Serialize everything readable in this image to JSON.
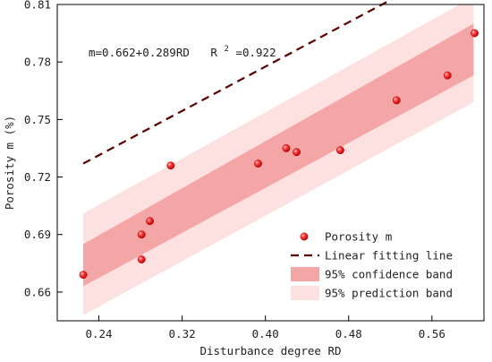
{
  "chart_data": {
    "type": "scatter",
    "title": "",
    "xlabel": "Disturbance degree RD",
    "ylabel": "Porosity m (%)",
    "xlim": [
      0.2,
      0.61
    ],
    "ylim": [
      0.645,
      0.81
    ],
    "xticks": [
      "0.24",
      "0.32",
      "0.40",
      "0.48",
      "0.56"
    ],
    "xtick_values": [
      0.24,
      0.32,
      0.4,
      0.48,
      0.56
    ],
    "yticks": [
      "0.66",
      "0.69",
      "0.72",
      "0.75",
      "0.78",
      "0.81"
    ],
    "ytick_values": [
      0.66,
      0.69,
      0.72,
      0.75,
      0.78,
      0.81
    ],
    "equation": {
      "text": "m=0.662+0.289RD",
      "r2_prefix": "R",
      "r2_sup": "2",
      "r2_value": "=0.922"
    },
    "fit": {
      "intercept": 0.662,
      "slope": 0.289,
      "x_range": [
        0.225,
        0.6
      ]
    },
    "confidence_band": {
      "x": [
        0.225,
        0.6
      ],
      "lower": [
        0.663,
        0.773
      ],
      "upper": [
        0.685,
        0.8
      ]
    },
    "prediction_band": {
      "x": [
        0.225,
        0.6
      ],
      "lower": [
        0.648,
        0.759
      ],
      "upper": [
        0.701,
        0.814
      ]
    },
    "series": [
      {
        "name": "Porosity m",
        "color": "#e02020",
        "points": [
          [
            0.225,
            0.669
          ],
          [
            0.281,
            0.677
          ],
          [
            0.281,
            0.69
          ],
          [
            0.289,
            0.697
          ],
          [
            0.309,
            0.726
          ],
          [
            0.393,
            0.727
          ],
          [
            0.42,
            0.735
          ],
          [
            0.43,
            0.733
          ],
          [
            0.472,
            0.734
          ],
          [
            0.526,
            0.76
          ],
          [
            0.575,
            0.773
          ],
          [
            0.601,
            0.795
          ]
        ]
      }
    ],
    "legend": {
      "position": "bottom-right",
      "entries": [
        {
          "label": "Porosity m",
          "kind": "marker",
          "color": "#e02020"
        },
        {
          "label": "Linear fitting line",
          "kind": "dashed-line",
          "color": "#5a0000"
        },
        {
          "label": "95% confidence band",
          "kind": "band",
          "color": "#f4a6a6"
        },
        {
          "label": "95% prediction band",
          "kind": "band",
          "color": "#fde0e0"
        }
      ]
    },
    "colors": {
      "marker": "#e02020",
      "fit_line": "#5a0000",
      "confidence": "#f4a6a6",
      "prediction": "#fde0e0"
    },
    "grid": false
  }
}
